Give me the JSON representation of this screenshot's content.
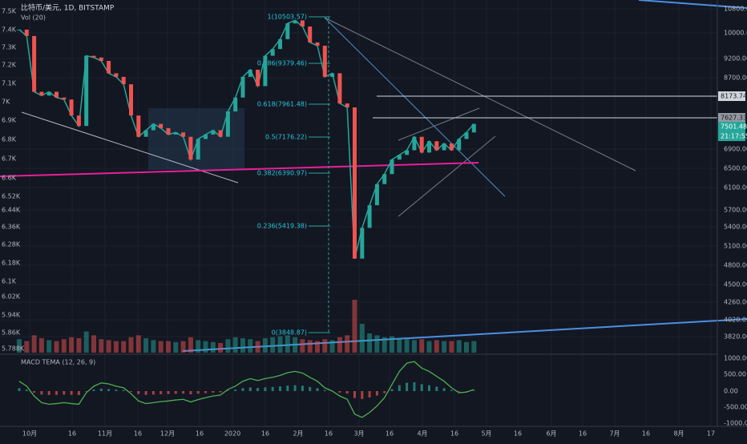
{
  "header": {
    "symbol": "比特币/美元, 1D, BITSTAMP",
    "indicator": "Vol (20)"
  },
  "left_axis": [
    "7.5K",
    "7.4K",
    "7.3K",
    "7.2K",
    "7.1K",
    "7K",
    "6.9K",
    "6.8K",
    "6.7K",
    "6.6K",
    "6.52K",
    "6.44K",
    "6.36K",
    "6.28K",
    "6.18K",
    "6.1K",
    "6.02K",
    "5.94K",
    "5.86K",
    "5.788K"
  ],
  "right_axis": [
    "10800.00",
    "10000.00",
    "9200.00",
    "8700.00",
    "6900.00",
    "6500.00",
    "6100.00",
    "5700.00",
    "5400.00",
    "5100.00",
    "4800.00",
    "4500.00",
    "4260.00",
    "4020.00",
    "3820.00"
  ],
  "price_tags": [
    "8173.74",
    "7627.33",
    "7501.48",
    "21:17:55"
  ],
  "fib_labels": [
    "1(10503.57)",
    "0.786(9379.46)",
    "0.618(7961.48)",
    "0.5(7176.22)",
    "0.382(6390.97)",
    "0.236(5419.38)",
    "0(3848.87)"
  ],
  "macd": {
    "label": "MACD TEMA (12, 26, 9)",
    "axis": [
      "1000.00",
      "500.00",
      "0.00",
      "-500.00",
      "-1000.00"
    ],
    "values": [
      300,
      150,
      -150,
      -350,
      -400,
      -380,
      -350,
      -380,
      -400,
      -50,
      150,
      250,
      220,
      150,
      100,
      -80,
      -300,
      -380,
      -350,
      -320,
      -300,
      -270,
      -250,
      -330,
      -260,
      -200,
      -150,
      -120,
      50,
      150,
      300,
      380,
      320,
      380,
      420,
      480,
      560,
      600,
      550,
      420,
      300,
      100,
      0,
      -150,
      -250,
      -700,
      -800,
      -650,
      -450,
      -200,
      200,
      600,
      850,
      900,
      700,
      600,
      450,
      300,
      100,
      -50,
      -30,
      50
    ]
  },
  "time_axis": [
    "10月",
    "16",
    "11月",
    "16",
    "12月",
    "16",
    "2020",
    "16",
    "2月",
    "16",
    "3月",
    "16",
    "4月",
    "16",
    "5月",
    "16",
    "6月",
    "16",
    "7月",
    "16",
    "8月",
    "17"
  ],
  "prices": [
    10100,
    9900,
    8300,
    8200,
    8300,
    8150,
    8100,
    7700,
    7450,
    9300,
    9250,
    9150,
    8800,
    8700,
    8500,
    7700,
    7200,
    7350,
    7500,
    7400,
    7250,
    7300,
    7200,
    6700,
    7150,
    7250,
    7350,
    7200,
    7800,
    8150,
    8700,
    8900,
    8450,
    9300,
    9500,
    9800,
    10300,
    10400,
    10200,
    9700,
    9600,
    8700,
    8800,
    8000,
    7900,
    4900,
    5400,
    5800,
    6200,
    6400,
    6700,
    6800,
    6900,
    7200,
    6850,
    7100,
    6900,
    7050,
    6900,
    7150,
    7300,
    7500
  ],
  "volumes": [
    14,
    12,
    18,
    15,
    13,
    12,
    14,
    16,
    15,
    22,
    18,
    14,
    13,
    12,
    12,
    16,
    18,
    15,
    13,
    12,
    12,
    11,
    12,
    16,
    13,
    12,
    11,
    10,
    14,
    16,
    15,
    14,
    12,
    15,
    16,
    17,
    18,
    16,
    14,
    13,
    12,
    14,
    13,
    16,
    18,
    55,
    30,
    20,
    18,
    16,
    17,
    15,
    14,
    13,
    14,
    12,
    13,
    12,
    12,
    13,
    11,
    12
  ]
}
